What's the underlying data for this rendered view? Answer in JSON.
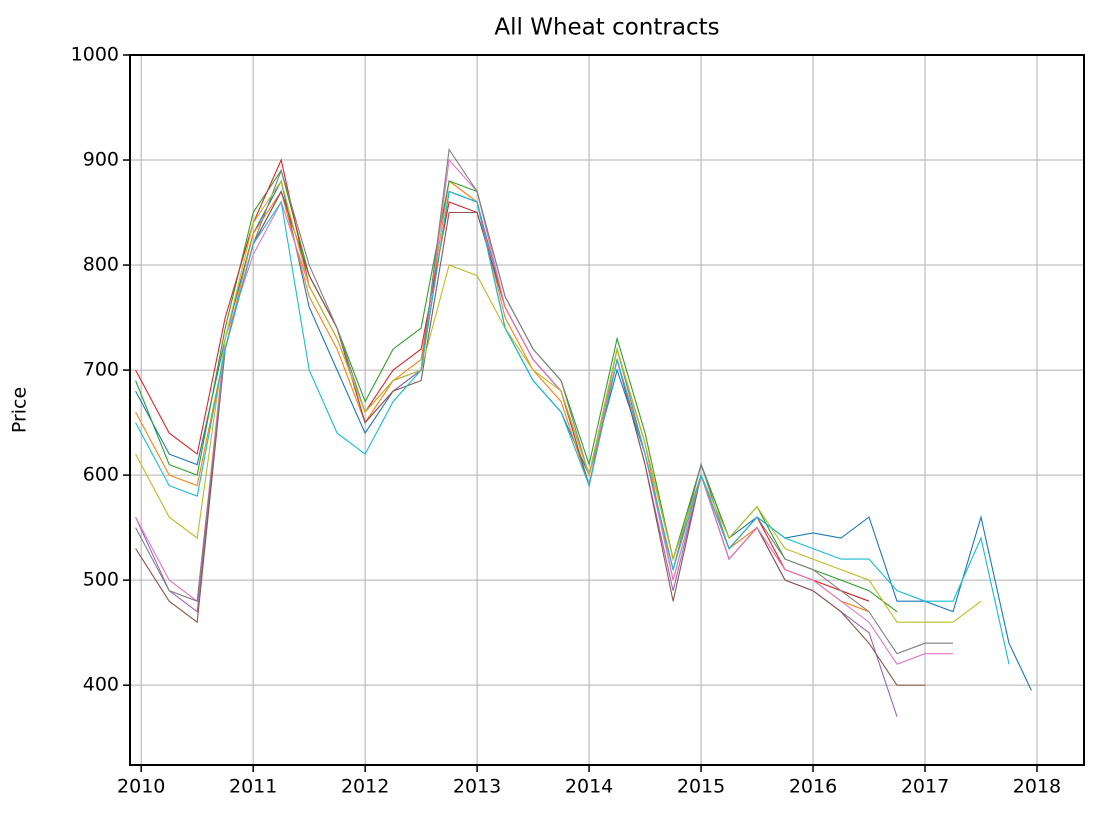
{
  "chart_data": {
    "type": "line",
    "title": "All Wheat contracts",
    "ylabel": "Price",
    "x": [
      2009.95,
      2010.25,
      2010.5,
      2010.75,
      2011.0,
      2011.25,
      2011.5,
      2011.75,
      2012.0,
      2012.25,
      2012.5,
      2012.75,
      2013.0,
      2013.25,
      2013.5,
      2013.75,
      2014.0,
      2014.25,
      2014.5,
      2014.75,
      2015.0,
      2015.25,
      2015.5,
      2015.75,
      2016.0,
      2016.25,
      2016.5,
      2016.75,
      2017.0,
      2017.25,
      2017.5,
      2017.75,
      2017.95
    ],
    "series": [
      {
        "name": "blue",
        "color": "#1f77b4",
        "values": [
          680,
          620,
          610,
          730,
          830,
          880,
          760,
          700,
          640,
          680,
          700,
          870,
          860,
          740,
          690,
          660,
          600,
          700,
          620,
          510,
          610,
          540,
          560,
          540,
          545,
          540,
          560,
          480,
          480,
          470,
          560,
          440,
          395
        ]
      },
      {
        "name": "orange",
        "color": "#ff7f0e",
        "values": [
          660,
          600,
          590,
          720,
          830,
          870,
          770,
          720,
          650,
          690,
          710,
          880,
          860,
          750,
          700,
          670,
          590,
          720,
          630,
          500,
          600,
          530,
          550,
          510,
          500,
          480,
          470,
          null,
          null,
          null,
          null,
          null,
          null
        ]
      },
      {
        "name": "green",
        "color": "#2ca02c",
        "values": [
          690,
          610,
          600,
          740,
          850,
          890,
          790,
          740,
          670,
          720,
          740,
          880,
          870,
          770,
          720,
          690,
          610,
          730,
          640,
          520,
          610,
          540,
          570,
          520,
          510,
          500,
          490,
          470,
          null,
          null,
          null,
          null,
          null
        ]
      },
      {
        "name": "red",
        "color": "#d62728",
        "values": [
          700,
          640,
          620,
          750,
          840,
          900,
          780,
          730,
          660,
          700,
          720,
          860,
          850,
          760,
          710,
          680,
          600,
          720,
          630,
          520,
          600,
          530,
          560,
          510,
          500,
          490,
          480,
          null,
          null,
          null,
          null,
          null,
          null
        ]
      },
      {
        "name": "purple",
        "color": "#9467bd",
        "values": [
          560,
          490,
          470,
          720,
          820,
          870,
          790,
          740,
          650,
          680,
          700,
          870,
          860,
          760,
          710,
          680,
          590,
          710,
          610,
          490,
          600,
          520,
          550,
          500,
          490,
          470,
          450,
          370,
          null,
          null,
          null,
          null,
          null
        ]
      },
      {
        "name": "brown",
        "color": "#8c564b",
        "values": [
          530,
          480,
          460,
          720,
          820,
          870,
          790,
          740,
          650,
          680,
          690,
          850,
          850,
          760,
          710,
          680,
          590,
          710,
          610,
          480,
          600,
          520,
          550,
          500,
          490,
          470,
          440,
          400,
          400,
          null,
          null,
          null,
          null
        ]
      },
      {
        "name": "pink",
        "color": "#e377c2",
        "values": [
          560,
          500,
          480,
          730,
          810,
          860,
          780,
          730,
          660,
          690,
          700,
          900,
          870,
          760,
          710,
          680,
          600,
          710,
          620,
          500,
          600,
          520,
          550,
          510,
          500,
          480,
          460,
          420,
          430,
          430,
          null,
          null,
          null
        ]
      },
      {
        "name": "gray",
        "color": "#7f7f7f",
        "values": [
          550,
          490,
          480,
          720,
          820,
          890,
          800,
          740,
          660,
          690,
          700,
          910,
          870,
          770,
          720,
          690,
          600,
          720,
          620,
          510,
          610,
          530,
          560,
          520,
          510,
          490,
          470,
          430,
          440,
          440,
          null,
          null,
          null
        ]
      },
      {
        "name": "olive",
        "color": "#bcbd22",
        "values": [
          620,
          560,
          540,
          730,
          840,
          880,
          780,
          730,
          660,
          690,
          700,
          800,
          790,
          740,
          700,
          680,
          600,
          720,
          630,
          520,
          600,
          540,
          570,
          530,
          520,
          510,
          500,
          460,
          460,
          460,
          480,
          null,
          null
        ]
      },
      {
        "name": "cyan",
        "color": "#17becf",
        "values": [
          650,
          590,
          580,
          720,
          820,
          860,
          700,
          640,
          620,
          670,
          700,
          870,
          860,
          740,
          690,
          660,
          590,
          710,
          620,
          510,
          600,
          530,
          560,
          540,
          530,
          520,
          520,
          490,
          480,
          480,
          540,
          420,
          null
        ]
      }
    ],
    "xlim": [
      2009.9,
      2018.42
    ],
    "xticks": [
      2010,
      2011,
      2012,
      2013,
      2014,
      2015,
      2016,
      2017,
      2018
    ],
    "ylim": [
      324,
      1000
    ],
    "yticks": [
      400,
      500,
      600,
      700,
      800,
      900,
      1000
    ],
    "grid": true
  }
}
